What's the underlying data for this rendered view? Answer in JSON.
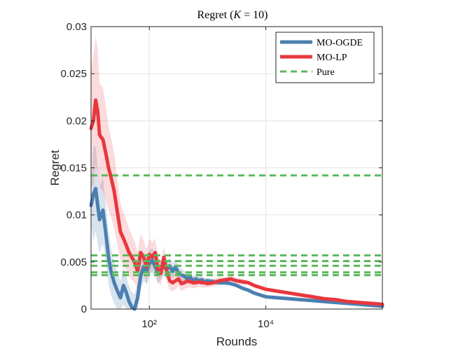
{
  "chart_data": {
    "type": "line",
    "title": "Regret (K = 10)",
    "xlabel": "Rounds",
    "ylabel": "Regret",
    "x_scale": "log",
    "xlim": [
      10,
      1000000
    ],
    "ylim": [
      0,
      0.03
    ],
    "x_ticks": [
      {
        "value": 100,
        "label": "10²"
      },
      {
        "value": 10000,
        "label": "10⁴"
      }
    ],
    "y_ticks": [
      "0",
      "0.005",
      "0.01",
      "0.015",
      "0.02",
      "0.025",
      "0.03"
    ],
    "grid": true,
    "legend_position": "top-right",
    "series": [
      {
        "name": "MO-OGDE",
        "color": "#4a7fb0",
        "style": "solid",
        "x": [
          10,
          11,
          12,
          13,
          14,
          16,
          18,
          20,
          22,
          25,
          28,
          32,
          36,
          40,
          45,
          50,
          56,
          63,
          71,
          80,
          90,
          100,
          112,
          126,
          141,
          158,
          178,
          200,
          224,
          251,
          282,
          316,
          355,
          398,
          447,
          501,
          562,
          631,
          708,
          794,
          891,
          1000,
          1259,
          1585,
          1995,
          2512,
          3162,
          3981,
          5012,
          6310,
          7943,
          10000,
          15849,
          25119,
          39811,
          63096,
          100000,
          158489,
          251189,
          398107,
          630957,
          1000000
        ],
        "values": [
          0.011,
          0.0122,
          0.0128,
          0.011,
          0.0095,
          0.0105,
          0.008,
          0.0055,
          0.004,
          0.0028,
          0.002,
          0.0012,
          0.0025,
          0.0018,
          0.0008,
          0.0002,
          0.0,
          0.0012,
          0.0035,
          0.0045,
          0.004,
          0.0048,
          0.0052,
          0.0045,
          0.0038,
          0.0042,
          0.0045,
          0.0042,
          0.0046,
          0.004,
          0.0045,
          0.0038,
          0.0036,
          0.0035,
          0.0032,
          0.0034,
          0.003,
          0.0032,
          0.003,
          0.0031,
          0.0029,
          0.003,
          0.0029,
          0.0028,
          0.0028,
          0.0027,
          0.0025,
          0.0022,
          0.002,
          0.0017,
          0.0015,
          0.0013,
          0.0012,
          0.0011,
          0.001,
          0.0009,
          0.0008,
          0.0007,
          0.0006,
          0.0005,
          0.0004,
          0.0003
        ],
        "band": [
          0.002,
          0.005,
          0.0045,
          0.004,
          0.0035,
          0.0035,
          0.003,
          0.0028,
          0.0025,
          0.0022,
          0.002,
          0.0018,
          0.002,
          0.0018,
          0.0016,
          0.0016,
          0.0016,
          0.0015,
          0.0015,
          0.0015,
          0.0014,
          0.0014,
          0.0013,
          0.0012,
          0.0011,
          0.001,
          0.001,
          0.0009,
          0.0009,
          0.0008,
          0.0008,
          0.0007,
          0.0007,
          0.0006,
          0.0006,
          0.0005,
          0.0005,
          0.0005,
          0.0004,
          0.0004,
          0.0004,
          0.0003,
          0.0003,
          0.0003,
          0.0003,
          0.0002,
          0.0002,
          0.0002,
          0.0002,
          0.0002,
          0.0002,
          0.0001,
          0.0001,
          0.0001,
          0.0001,
          0.0001,
          0.0001,
          0.0001,
          0.0001,
          0.0001,
          0.0001,
          0.0001
        ]
      },
      {
        "name": "MO-LP",
        "color": "#e8373d",
        "style": "solid",
        "x": [
          10,
          11,
          12,
          13,
          14,
          16,
          18,
          20,
          22,
          25,
          28,
          32,
          36,
          40,
          45,
          50,
          56,
          63,
          71,
          80,
          90,
          100,
          112,
          126,
          141,
          158,
          178,
          200,
          224,
          251,
          282,
          316,
          355,
          398,
          447,
          501,
          562,
          631,
          708,
          794,
          891,
          1000,
          1259,
          1585,
          1995,
          2512,
          3162,
          3981,
          5012,
          6310,
          7943,
          10000,
          15849,
          25119,
          39811,
          63096,
          100000,
          158489,
          251189,
          398107,
          630957,
          1000000
        ],
        "values": [
          0.0192,
          0.02,
          0.0222,
          0.021,
          0.0185,
          0.018,
          0.0165,
          0.015,
          0.014,
          0.0125,
          0.0105,
          0.0082,
          0.0075,
          0.0068,
          0.006,
          0.0055,
          0.005,
          0.004,
          0.006,
          0.0055,
          0.0045,
          0.0058,
          0.0055,
          0.006,
          0.0042,
          0.0038,
          0.0055,
          0.004,
          0.003,
          0.0028,
          0.003,
          0.0032,
          0.0027,
          0.0028,
          0.003,
          0.0029,
          0.0028,
          0.0028,
          0.0029,
          0.0028,
          0.0028,
          0.0027,
          0.0028,
          0.003,
          0.0031,
          0.0032,
          0.003,
          0.0029,
          0.0028,
          0.0025,
          0.0023,
          0.0021,
          0.0019,
          0.0017,
          0.0015,
          0.0013,
          0.0011,
          0.001,
          0.0008,
          0.0007,
          0.0006,
          0.0005
        ],
        "band": [
          0.006,
          0.007,
          0.0068,
          0.0065,
          0.0055,
          0.0055,
          0.005,
          0.0045,
          0.0042,
          0.004,
          0.0035,
          0.003,
          0.0028,
          0.0027,
          0.0025,
          0.0024,
          0.0022,
          0.002,
          0.002,
          0.0018,
          0.0018,
          0.0017,
          0.0016,
          0.0015,
          0.0014,
          0.0013,
          0.0012,
          0.0011,
          0.001,
          0.0009,
          0.0009,
          0.0008,
          0.0008,
          0.0007,
          0.0007,
          0.0006,
          0.0006,
          0.0006,
          0.0005,
          0.0005,
          0.0005,
          0.0004,
          0.0004,
          0.0004,
          0.0003,
          0.0003,
          0.0003,
          0.0003,
          0.0002,
          0.0002,
          0.0002,
          0.0002,
          0.0002,
          0.0002,
          0.0002,
          0.0002,
          0.0001,
          0.0001,
          0.0001,
          0.0001,
          0.0001,
          0.0001
        ]
      },
      {
        "name": "Pure",
        "color": "#5cb85c",
        "style": "dashed",
        "y_levels": [
          0.0142,
          0.0057,
          0.0051,
          0.0046,
          0.0039,
          0.0036
        ]
      }
    ]
  }
}
